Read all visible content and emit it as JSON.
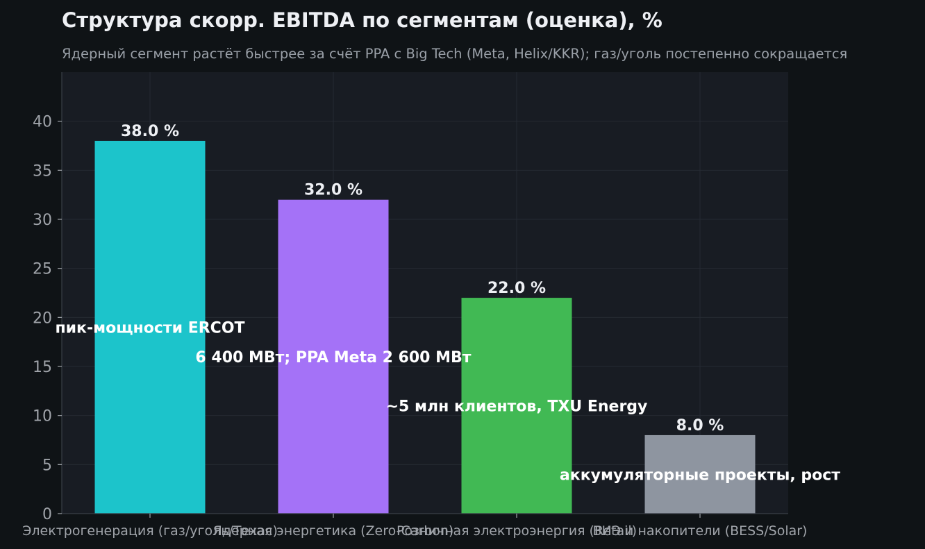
{
  "chart_data": {
    "type": "bar",
    "title": "Структура скорр. EBITDA по сегментам (оценка), %",
    "subtitle": "Ядерный сегмент растёт быстрее за счёт PPA с Big Tech (Meta, Helix/KKR); газ/уголь постепенно сокращается",
    "xlabel": "",
    "ylabel": "",
    "categories": [
      "Электрогенерация (газ/уголь/Техас)",
      "Ядерная энергетика (Zero-Carbon)",
      "Розничная электроэнергия (Retail)",
      "ВИЭ и накопители (BESS/Solar)"
    ],
    "values": [
      38.0,
      32.0,
      22.0,
      8.0
    ],
    "value_labels": [
      "38.0 %",
      "32.0 %",
      "22.0 %",
      "8.0 %"
    ],
    "annotations": [
      "пик-мощности ERCOT",
      "6 400 МВт; PPA Meta 2 600 МВт",
      "~5 млн клиентов, TXU Energy",
      "аккумуляторные проекты, рост"
    ],
    "ylim": [
      0,
      45
    ],
    "yticks": [
      0,
      5,
      10,
      15,
      20,
      25,
      30,
      35,
      40
    ],
    "grid": true,
    "colors": [
      "#1cc4cb",
      "#a472f7",
      "#41b954",
      "#8e95a0"
    ],
    "style": {
      "background": "#0f1316",
      "plot_background": "#181c23",
      "grid_color": "#252a33",
      "axis_color": "#3a3f47",
      "tick_label_color": "#a0a4aa",
      "title_color": "#eef0f4",
      "subtitle_color": "#9aa0a8",
      "value_label_color": "#eef0f4",
      "annotation_color": "#ffffff"
    }
  }
}
